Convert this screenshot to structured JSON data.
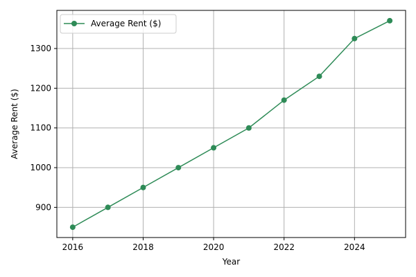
{
  "chart_data": {
    "type": "line",
    "title": "",
    "xlabel": "Year",
    "ylabel": "Average Rent ($)",
    "x": [
      2016,
      2017,
      2018,
      2019,
      2020,
      2021,
      2022,
      2023,
      2024,
      2025
    ],
    "series": [
      {
        "name": "Average Rent ($)",
        "values": [
          850,
          900,
          950,
          1000,
          1050,
          1100,
          1170,
          1230,
          1325,
          1370
        ],
        "color": "#2e8b57",
        "marker": "circle"
      }
    ],
    "xlim": [
      2015.55,
      2025.45
    ],
    "ylim": [
      824,
      1396
    ],
    "xticks": [
      2016,
      2018,
      2020,
      2022,
      2024
    ],
    "yticks": [
      900,
      1000,
      1100,
      1200,
      1300
    ],
    "grid": true,
    "legend_position": "top-left"
  }
}
